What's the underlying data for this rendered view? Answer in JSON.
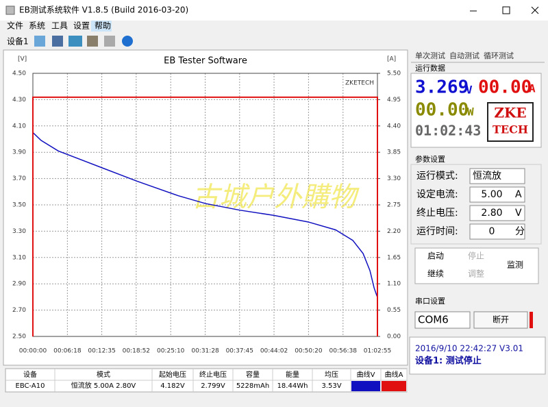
{
  "window": {
    "title": "EB测试系统软件 V1.8.5 (Build 2016-03-20)",
    "menu": [
      "文件",
      "系统",
      "工具",
      "设置",
      "帮助"
    ],
    "toolbar_label": "设备1"
  },
  "chart_data": {
    "type": "line",
    "title": "EB Tester Software",
    "ylabel": "[V]",
    "y2label": "[A]",
    "annotations": [
      "ZKETECH",
      "古城户外購物"
    ],
    "xlim": [
      0,
      3775
    ],
    "xticks": [
      {
        "value": 0,
        "label": "00:00:00"
      },
      {
        "value": 378,
        "label": "00:06:18"
      },
      {
        "value": 755,
        "label": "00:12:35"
      },
      {
        "value": 1132,
        "label": "00:18:52"
      },
      {
        "value": 1510,
        "label": "00:25:10"
      },
      {
        "value": 1888,
        "label": "00:31:28"
      },
      {
        "value": 2265,
        "label": "00:37:45"
      },
      {
        "value": 2642,
        "label": "00:44:02"
      },
      {
        "value": 3020,
        "label": "00:50:20"
      },
      {
        "value": 3398,
        "label": "00:56:38"
      },
      {
        "value": 3775,
        "label": "01:02:55"
      }
    ],
    "ylim": [
      2.5,
      4.5
    ],
    "yticks": [
      {
        "value": 2.5,
        "label": "2.50"
      },
      {
        "value": 2.7,
        "label": "2.70"
      },
      {
        "value": 2.9,
        "label": "2.90"
      },
      {
        "value": 3.1,
        "label": "3.10"
      },
      {
        "value": 3.3,
        "label": "3.30"
      },
      {
        "value": 3.5,
        "label": "3.50"
      },
      {
        "value": 3.7,
        "label": "3.70"
      },
      {
        "value": 3.9,
        "label": "3.90"
      },
      {
        "value": 4.1,
        "label": "4.10"
      },
      {
        "value": 4.3,
        "label": "4.30"
      },
      {
        "value": 4.5,
        "label": "4.50"
      }
    ],
    "y2lim": [
      0,
      5.5
    ],
    "y2ticks": [
      {
        "value": 0,
        "label": "0.00"
      },
      {
        "value": 0.55,
        "label": "0.55"
      },
      {
        "value": 1.1,
        "label": "1.10"
      },
      {
        "value": 1.65,
        "label": "1.65"
      },
      {
        "value": 2.2,
        "label": "2.20"
      },
      {
        "value": 2.75,
        "label": "2.75"
      },
      {
        "value": 3.3,
        "label": "3.30"
      },
      {
        "value": 3.85,
        "label": "3.85"
      },
      {
        "value": 4.4,
        "label": "4.40"
      },
      {
        "value": 4.95,
        "label": "4.95"
      },
      {
        "value": 5.5,
        "label": "5.50"
      }
    ],
    "grid": true,
    "series": [
      {
        "name": "曲线V",
        "color": "#1010c0",
        "x": [
          0,
          90,
          278,
          765,
          1141,
          1591,
          1891,
          2266,
          2642,
          3017,
          3317,
          3505,
          3618,
          3693,
          3738,
          3768,
          3775
        ],
        "values": [
          4.05,
          3.99,
          3.91,
          3.78,
          3.68,
          3.57,
          3.51,
          3.46,
          3.42,
          3.37,
          3.31,
          3.23,
          3.13,
          3.0,
          2.87,
          2.81,
          2.8
        ]
      },
      {
        "name": "曲线A",
        "color": "#e01010",
        "axis": "y2",
        "x": [
          0,
          0,
          3775,
          3775
        ],
        "values": [
          0,
          5,
          5,
          0
        ]
      }
    ]
  },
  "panel": {
    "tabs": [
      "单次测试",
      "自动测试",
      "循环测试"
    ],
    "run_group": "运行数据",
    "voltage": "3.269",
    "voltage_unit": "V",
    "current": "00.00",
    "current_unit": "A",
    "power": "00.00",
    "power_unit": "W",
    "time": "01:02:43",
    "logo": [
      "ZKE",
      "TECH"
    ],
    "param_group": "参数设置",
    "params": [
      [
        "运行模式:",
        "恒流放",
        ""
      ],
      [
        "设定电流:",
        "5.00",
        "A"
      ],
      [
        "终止电压:",
        "2.80",
        "V"
      ],
      [
        "运行时间:",
        "0",
        "分"
      ]
    ],
    "buttons": [
      "启动",
      "停止",
      "继续",
      "调整",
      "监测"
    ],
    "port_group": "串口设置",
    "port": "COM6",
    "disconnect": "断开",
    "status": [
      "2016/9/10 22:42:27  V3.01",
      "设备1: 测试停止"
    ]
  },
  "table": {
    "headers": [
      "设备",
      "模式",
      "起始电压",
      "终止电压",
      "容量",
      "能量",
      "均压",
      "曲线V",
      "曲线A"
    ],
    "rows": [
      [
        "EBC-A10",
        "恒流放  5.00A  2.80V",
        "4.182V",
        "2.799V",
        "5228mAh",
        "18.44Wh",
        "3.53V"
      ]
    ]
  }
}
